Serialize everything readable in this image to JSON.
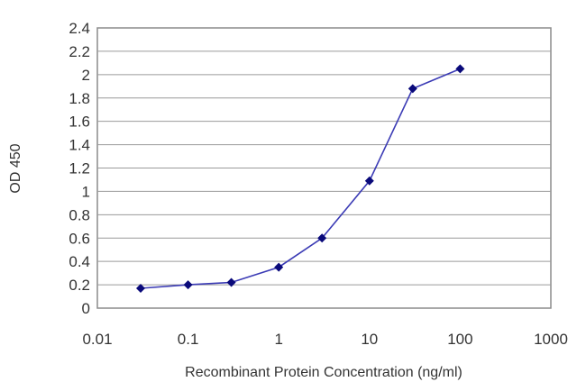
{
  "chart_data": {
    "type": "line",
    "xlabel": "Recombinant Protein Concentration (ng/ml)",
    "ylabel": "OD 450",
    "x_scale": "log",
    "xlim": [
      0.01,
      1000
    ],
    "ylim": [
      0,
      2.4
    ],
    "x_ticks": [
      "0.01",
      "0.1",
      "1",
      "10",
      "100",
      "1000"
    ],
    "y_ticks": [
      "0",
      "0.2",
      "0.4",
      "0.6",
      "0.8",
      "1",
      "1.2",
      "1.4",
      "1.6",
      "1.8",
      "2",
      "2.2",
      "2.4"
    ],
    "grid": true,
    "series": [
      {
        "x": [
          0.03,
          0.1,
          0.3,
          1,
          3,
          10,
          30,
          100
        ],
        "y": [
          0.17,
          0.2,
          0.22,
          0.35,
          0.6,
          1.09,
          1.88,
          2.05
        ]
      }
    ],
    "colors": {
      "line": "#3b3bb5",
      "marker": "#0a0a7a",
      "grid": "#9a9a9a",
      "frame": "#8c8c8c"
    }
  }
}
